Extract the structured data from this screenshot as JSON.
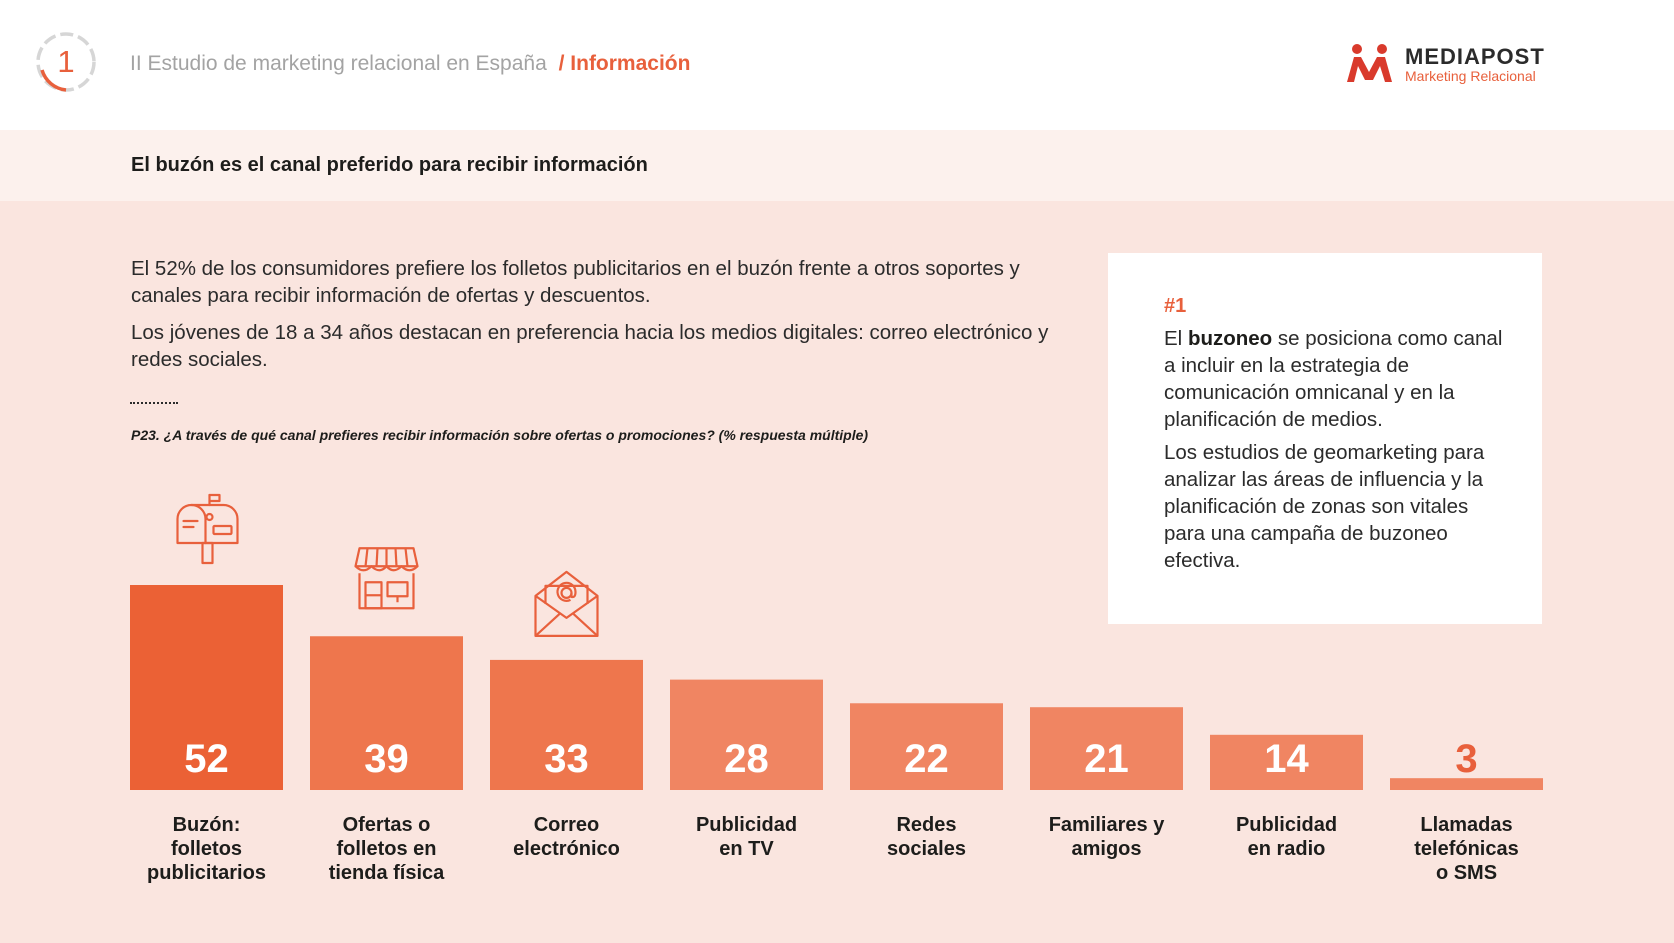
{
  "header": {
    "section_number": "1",
    "breadcrumb_study": "II Estudio de marketing relacional en España",
    "breadcrumb_separator": "/",
    "breadcrumb_current": "Información",
    "brand_name": "MEDIAPOST",
    "brand_tagline": "Marketing Relacional"
  },
  "page_title": "El buzón es el canal preferido para recibir información",
  "intro": {
    "paragraph1": "El 52% de los consumidores prefiere los folletos publicitarios en el buzón frente a otros soportes y canales para recibir información de ofertas y descuentos.",
    "paragraph2": "Los jóvenes de 18 a 34 años destacan en preferencia hacia los medios digitales: correo electrónico y redes sociales."
  },
  "question": "P23. ¿A través de qué canal prefieres recibir información sobre ofertas o promociones? (% respuesta múltiple)",
  "callout": {
    "tag": "#1",
    "p1_before": "El ",
    "p1_bold": "buzoneo",
    "p1_after": " se posiciona como canal a incluir en la estrategia de comunicación omnicanal y en la planificación de medios.",
    "p2": "Los estudios de geomarketing para analizar las áreas de influencia y la planificación de zonas son vitales para una campaña de buzoneo efectiva."
  },
  "colors": {
    "accent": "#e8603c",
    "bar_dark": "#eb6135",
    "bar_mid": "#ee764d",
    "bar_light": "#f08562",
    "band_light": "#fcf1ed",
    "background": "#fae5df"
  },
  "chart_data": {
    "type": "bar",
    "categories": [
      [
        "Buzón:",
        "folletos",
        "publicitarios"
      ],
      [
        "Ofertas o",
        "folletos en",
        "tienda física"
      ],
      [
        "Correo",
        "electrónico"
      ],
      [
        "Publicidad",
        "en TV"
      ],
      [
        "Redes",
        "sociales"
      ],
      [
        "Familiares y",
        "amigos"
      ],
      [
        "Publicidad",
        "en radio"
      ],
      [
        "Llamadas",
        "telefónicas",
        "o SMS"
      ]
    ],
    "values": [
      52,
      39,
      33,
      28,
      22,
      21,
      14,
      3
    ],
    "icons": [
      "mailbox-icon",
      "store-icon",
      "email-icon",
      null,
      null,
      null,
      null,
      null
    ],
    "ylim": [
      0,
      52
    ],
    "grid": false,
    "legend": "none",
    "title": "",
    "xlabel": "",
    "ylabel": ""
  }
}
